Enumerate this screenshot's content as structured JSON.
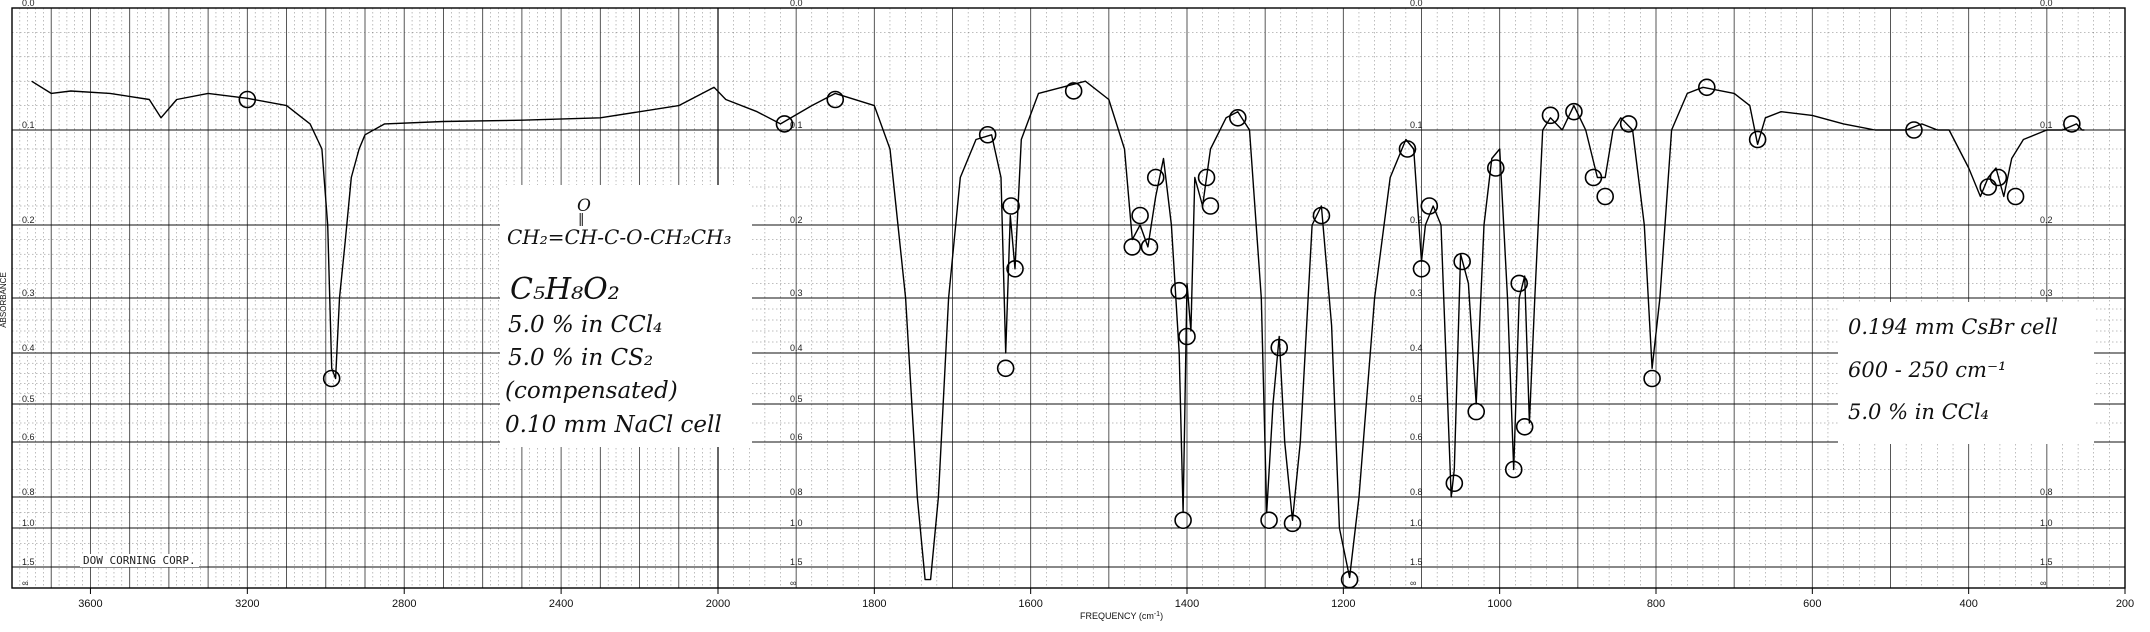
{
  "chart_data": {
    "type": "line",
    "xlabel": "FREQUENCY (cm",
    "xlabel_suffix": ")",
    "ylabel": "ABSORBANCE",
    "x_ticks": [
      3600,
      3200,
      2800,
      2400,
      2000,
      1800,
      1600,
      1400,
      1200,
      1000,
      800,
      600,
      400,
      200
    ],
    "y_ticks": [
      "0.0",
      "0.1",
      "0.2",
      "0.3",
      "0.4",
      "0.5",
      "0.6",
      "0.8",
      "1.0",
      "1.5",
      "∞"
    ],
    "y_tick_values": [
      0.0,
      0.1,
      0.2,
      0.3,
      0.4,
      0.5,
      0.6,
      0.8,
      1.0,
      1.5,
      2.0
    ],
    "grid": true,
    "line_color": "#000000",
    "grid_color": "#444444",
    "series": [
      {
        "points": [
          [
            3750,
            0.06
          ],
          [
            3700,
            0.07
          ],
          [
            3650,
            0.068
          ],
          [
            3550,
            0.07
          ],
          [
            3450,
            0.075
          ],
          [
            3420,
            0.09
          ],
          [
            3380,
            0.075
          ],
          [
            3300,
            0.07
          ],
          [
            3200,
            0.074
          ],
          [
            3100,
            0.08
          ],
          [
            3060,
            0.09
          ],
          [
            3040,
            0.095
          ],
          [
            3010,
            0.12
          ],
          [
            2995,
            0.2
          ],
          [
            2985,
            0.43
          ],
          [
            2975,
            0.45
          ],
          [
            2965,
            0.3
          ],
          [
            2950,
            0.22
          ],
          [
            2935,
            0.15
          ],
          [
            2915,
            0.12
          ],
          [
            2900,
            0.105
          ],
          [
            2850,
            0.095
          ],
          [
            2700,
            0.093
          ],
          [
            2500,
            0.092
          ],
          [
            2300,
            0.09
          ],
          [
            2100,
            0.08
          ],
          [
            2010,
            0.065
          ],
          [
            1990,
            0.075
          ],
          [
            1950,
            0.085
          ],
          [
            1920,
            0.095
          ],
          [
            1880,
            0.08
          ],
          [
            1850,
            0.07
          ],
          [
            1800,
            0.08
          ],
          [
            1780,
            0.12
          ],
          [
            1760,
            0.3
          ],
          [
            1745,
            0.8
          ],
          [
            1735,
            1.8
          ],
          [
            1728,
            1.8
          ],
          [
            1718,
            0.8
          ],
          [
            1705,
            0.3
          ],
          [
            1690,
            0.15
          ],
          [
            1670,
            0.11
          ],
          [
            1650,
            0.105
          ],
          [
            1638,
            0.15
          ],
          [
            1632,
            0.4
          ],
          [
            1626,
            0.19
          ],
          [
            1620,
            0.26
          ],
          [
            1612,
            0.11
          ],
          [
            1590,
            0.07
          ],
          [
            1560,
            0.065
          ],
          [
            1530,
            0.06
          ],
          [
            1500,
            0.075
          ],
          [
            1480,
            0.12
          ],
          [
            1470,
            0.22
          ],
          [
            1460,
            0.2
          ],
          [
            1450,
            0.23
          ],
          [
            1440,
            0.17
          ],
          [
            1430,
            0.13
          ],
          [
            1420,
            0.2
          ],
          [
            1410,
            0.4
          ],
          [
            1405,
            0.9
          ],
          [
            1400,
            0.28
          ],
          [
            1395,
            0.36
          ],
          [
            1390,
            0.15
          ],
          [
            1380,
            0.18
          ],
          [
            1370,
            0.12
          ],
          [
            1350,
            0.09
          ],
          [
            1335,
            0.085
          ],
          [
            1320,
            0.1
          ],
          [
            1305,
            0.3
          ],
          [
            1298,
            0.9
          ],
          [
            1290,
            0.5
          ],
          [
            1282,
            0.37
          ],
          [
            1275,
            0.6
          ],
          [
            1265,
            0.95
          ],
          [
            1255,
            0.6
          ],
          [
            1240,
            0.2
          ],
          [
            1228,
            0.18
          ],
          [
            1215,
            0.35
          ],
          [
            1205,
            1.0
          ],
          [
            1192,
            1.75
          ],
          [
            1180,
            0.8
          ],
          [
            1160,
            0.3
          ],
          [
            1140,
            0.15
          ],
          [
            1120,
            0.11
          ],
          [
            1110,
            0.12
          ],
          [
            1100,
            0.25
          ],
          [
            1095,
            0.2
          ],
          [
            1085,
            0.18
          ],
          [
            1075,
            0.2
          ],
          [
            1062,
            0.8
          ],
          [
            1058,
            0.7
          ],
          [
            1050,
            0.24
          ],
          [
            1040,
            0.28
          ],
          [
            1030,
            0.5
          ],
          [
            1020,
            0.2
          ],
          [
            1010,
            0.13
          ],
          [
            1000,
            0.12
          ],
          [
            990,
            0.3
          ],
          [
            982,
            0.7
          ],
          [
            975,
            0.3
          ],
          [
            968,
            0.27
          ],
          [
            962,
            0.55
          ],
          [
            955,
            0.3
          ],
          [
            945,
            0.1
          ],
          [
            935,
            0.09
          ],
          [
            920,
            0.1
          ],
          [
            905,
            0.08
          ],
          [
            890,
            0.1
          ],
          [
            875,
            0.15
          ],
          [
            865,
            0.15
          ],
          [
            855,
            0.1
          ],
          [
            845,
            0.09
          ],
          [
            830,
            0.1
          ],
          [
            815,
            0.2
          ],
          [
            805,
            0.43
          ],
          [
            795,
            0.3
          ],
          [
            780,
            0.1
          ],
          [
            760,
            0.07
          ],
          [
            740,
            0.065
          ],
          [
            700,
            0.07
          ],
          [
            680,
            0.08
          ],
          [
            670,
            0.115
          ],
          [
            660,
            0.09
          ],
          [
            640,
            0.085
          ],
          [
            600,
            0.088
          ],
          [
            560,
            0.095
          ],
          [
            520,
            0.1
          ],
          [
            480,
            0.1
          ],
          [
            460,
            0.095
          ],
          [
            440,
            0.1
          ],
          [
            425,
            0.1
          ],
          [
            400,
            0.14
          ],
          [
            385,
            0.17
          ],
          [
            375,
            0.15
          ],
          [
            365,
            0.14
          ],
          [
            355,
            0.17
          ],
          [
            345,
            0.13
          ],
          [
            330,
            0.11
          ],
          [
            300,
            0.1
          ],
          [
            280,
            0.1
          ],
          [
            262,
            0.095
          ],
          [
            255,
            0.1
          ],
          [
            252,
            0.1
          ]
        ]
      }
    ],
    "circled_peaks": [
      [
        3200,
        0.075
      ],
      [
        1850,
        0.075
      ],
      [
        1915,
        0.095
      ],
      [
        2985,
        0.45
      ],
      [
        1655,
        0.105
      ],
      [
        1632,
        0.43
      ],
      [
        1625,
        0.18
      ],
      [
        1620,
        0.26
      ],
      [
        1545,
        0.068
      ],
      [
        1470,
        0.23
      ],
      [
        1460,
        0.19
      ],
      [
        1448,
        0.23
      ],
      [
        1440,
        0.15
      ],
      [
        1410,
        0.29
      ],
      [
        1400,
        0.37
      ],
      [
        1405,
        0.95
      ],
      [
        1375,
        0.15
      ],
      [
        1370,
        0.18
      ],
      [
        1335,
        0.09
      ],
      [
        1295,
        0.95
      ],
      [
        1282,
        0.39
      ],
      [
        1265,
        0.97
      ],
      [
        1228,
        0.19
      ],
      [
        1192,
        1.8
      ],
      [
        1118,
        0.12
      ],
      [
        1100,
        0.26
      ],
      [
        1090,
        0.18
      ],
      [
        1058,
        0.75
      ],
      [
        1048,
        0.25
      ],
      [
        1030,
        0.52
      ],
      [
        1005,
        0.14
      ],
      [
        982,
        0.7
      ],
      [
        975,
        0.28
      ],
      [
        968,
        0.56
      ],
      [
        935,
        0.088
      ],
      [
        905,
        0.085
      ],
      [
        880,
        0.15
      ],
      [
        865,
        0.17
      ],
      [
        835,
        0.095
      ],
      [
        805,
        0.45
      ],
      [
        735,
        0.065
      ],
      [
        670,
        0.11
      ],
      [
        470,
        0.1
      ],
      [
        375,
        0.16
      ],
      [
        362,
        0.15
      ],
      [
        340,
        0.17
      ],
      [
        268,
        0.095
      ]
    ],
    "formula_text": "CH₂=CH-C-O-CH₂CH₃",
    "carbonyl_o": "O",
    "annotations": [
      "C₅H₈O₂",
      "5.0 % in CCl₄",
      "5.0 % in CS₂",
      "(compensated)",
      "0.10 mm NaCl cell"
    ],
    "annotations_right": [
      "0.194 mm CsBr cell",
      "600 - 250 cm⁻¹",
      "5.0 % in CCl₄"
    ],
    "footer_text": "DOW CORNING CORP."
  }
}
